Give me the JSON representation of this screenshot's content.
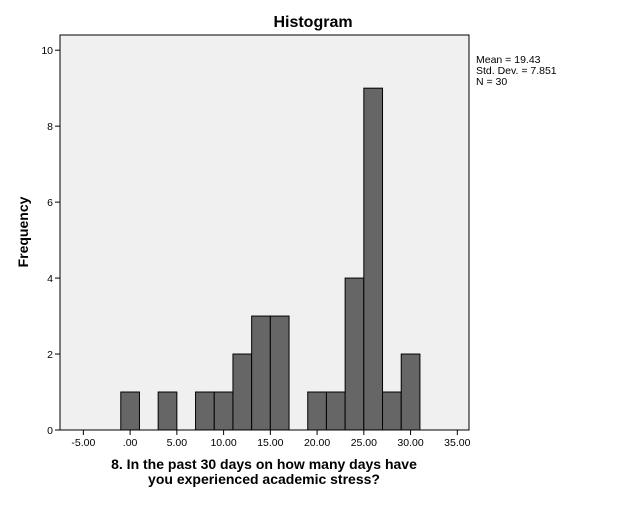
{
  "chart_data": {
    "type": "bar",
    "title": "Histogram",
    "ylabel": "Frequency",
    "xlabel_lines": [
      "8.  In the past 30 days on how many days have",
      "you experienced academic stress?"
    ],
    "xlim": [
      -7.5,
      36.25
    ],
    "ylim": [
      0,
      10.4
    ],
    "x_ticks": [
      -5,
      0,
      5,
      10,
      15,
      20,
      25,
      30,
      35
    ],
    "x_tick_labels": [
      "-5.00",
      ".00",
      "5.00",
      "10.00",
      "15.00",
      "20.00",
      "25.00",
      "30.00",
      "35.00"
    ],
    "y_ticks": [
      0,
      2,
      4,
      6,
      8,
      10
    ],
    "y_tick_labels": [
      "0",
      "2",
      "4",
      "6",
      "8",
      "10"
    ],
    "bin_width": 2,
    "bins": [
      {
        "x": 0,
        "count": 1
      },
      {
        "x": 4,
        "count": 1
      },
      {
        "x": 8,
        "count": 1
      },
      {
        "x": 10,
        "count": 1
      },
      {
        "x": 12,
        "count": 2
      },
      {
        "x": 14,
        "count": 3
      },
      {
        "x": 16,
        "count": 3
      },
      {
        "x": 20,
        "count": 1
      },
      {
        "x": 22,
        "count": 1
      },
      {
        "x": 24,
        "count": 4
      },
      {
        "x": 26,
        "count": 9
      },
      {
        "x": 28,
        "count": 1
      },
      {
        "x": 30,
        "count": 2
      }
    ],
    "stats": [
      "Mean = 19.43",
      "Std. Dev. = 7.851",
      "N = 30"
    ],
    "grid": false,
    "colors": {
      "plot_background": "#f0f0f0",
      "bar_fill": "#666666",
      "bar_stroke": "#000000"
    }
  }
}
